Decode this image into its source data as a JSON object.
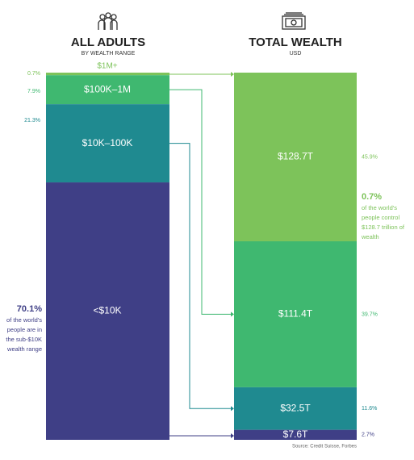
{
  "chart_data": {
    "type": "stacked-columns",
    "categories": [
      "$1M+",
      "$100K–1M",
      "$10K–100K",
      "<$10K"
    ],
    "colors": [
      "#7dc35a",
      "#3fb870",
      "#1f8a90",
      "#3f3f86"
    ],
    "series": [
      {
        "name": "ALL ADULTS",
        "subtitle": "BY WEALTH RANGE",
        "values": [
          0.7,
          7.9,
          21.3,
          70.1
        ],
        "value_labels": [
          "0.7%",
          "7.9%",
          "21.3%",
          "70.1%"
        ]
      },
      {
        "name": "TOTAL WEALTH",
        "subtitle": "USD",
        "values": [
          128.7,
          111.4,
          32.5,
          7.6
        ],
        "value_labels": [
          "$128.7T",
          "$111.4T",
          "$32.5T",
          "$7.6T"
        ],
        "shares": [
          45.9,
          39.7,
          11.6,
          2.7
        ],
        "share_labels": [
          "45.9%",
          "39.7%",
          "11.6%",
          "2.7%"
        ]
      }
    ],
    "annotations": [
      "of the world's people are in the sub-$10K wealth range",
      "of the world's people control $128.7 trillion of wealth"
    ],
    "source": "Source: Credit Suisse, Forbes"
  }
}
